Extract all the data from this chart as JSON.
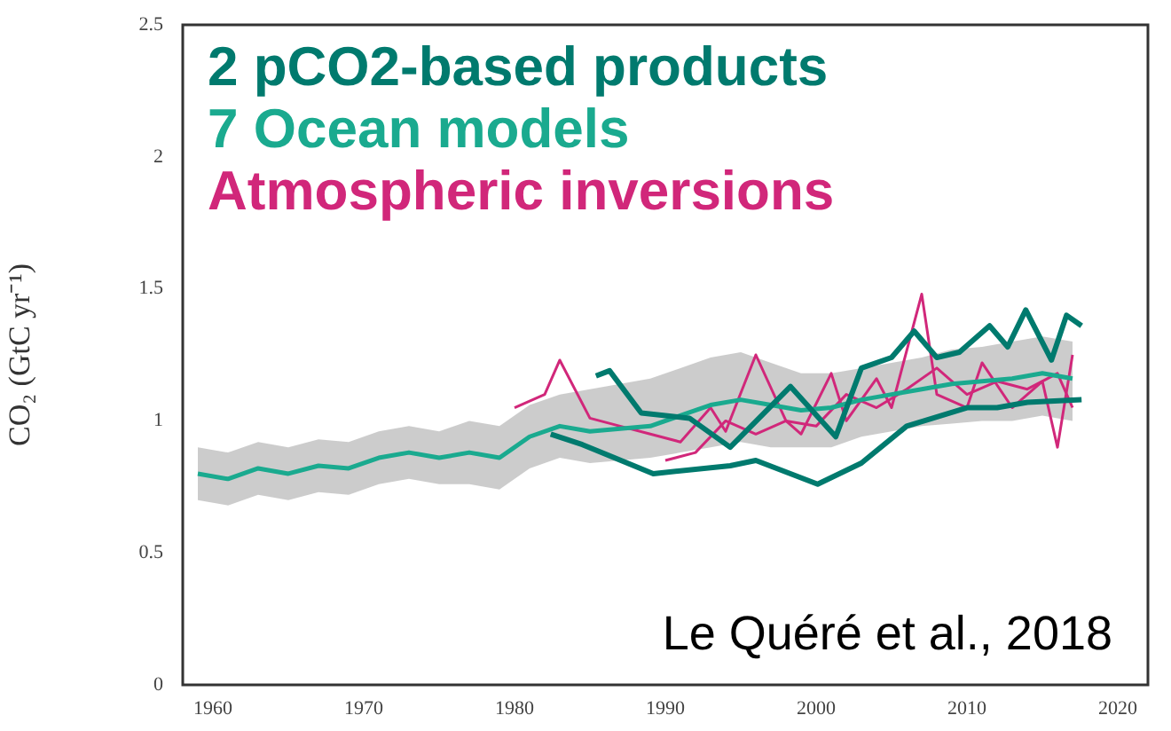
{
  "chart_data": {
    "type": "line",
    "ylabel": "CO₂ (GtC yr⁻¹)",
    "annotations": [
      "Le Quéré et al., 2018"
    ],
    "xlim": [
      1958,
      2022
    ],
    "xticks": [
      1960,
      1970,
      1980,
      1990,
      2000,
      2010,
      2020
    ],
    "ylim": [
      0,
      2.5
    ],
    "yticks": [
      0,
      0.5,
      1,
      1.5,
      2,
      2.5
    ],
    "grid": false,
    "legend": "top left",
    "marker": "none",
    "line_style": "solid",
    "series": [
      {
        "name": "2 pCO2-based products",
        "color": "#007a6e",
        "x": [
          1985.4,
          1986.3,
          1988.4,
          1991.6,
          1994.3,
          1998.3,
          2001.3,
          2003,
          2005,
          2006.5,
          2008,
          2009.5,
          2011.5,
          2012.7,
          2013.9,
          2015.6,
          2016.6,
          2017.6
        ],
        "values": [
          1.17,
          1.19,
          1.03,
          1.01,
          0.9,
          1.13,
          0.94,
          1.2,
          1.24,
          1.34,
          1.24,
          1.26,
          1.36,
          1.28,
          1.42,
          1.23,
          1.4,
          1.36
        ]
      },
      {
        "color": "#007a6e",
        "x": [
          1982.4,
          1984.5,
          1989.2,
          1994.3,
          1996,
          2000.1,
          2003,
          2006,
          2010,
          2012,
          2014,
          2017.6
        ],
        "values": [
          0.95,
          0.91,
          0.8,
          0.83,
          0.85,
          0.76,
          0.84,
          0.98,
          1.05,
          1.05,
          1.07,
          1.08
        ]
      },
      {
        "name": "7 Ocean models",
        "color": "#1aaa8f",
        "x": [
          1959,
          1961,
          1963,
          1965,
          1967,
          1969,
          1971,
          1973,
          1975,
          1977,
          1979,
          1981,
          1983,
          1985,
          1987,
          1989,
          1991,
          1993,
          1995,
          1997,
          1999,
          2001,
          2003,
          2005,
          2007,
          2009,
          2011,
          2013,
          2015,
          2017
        ],
        "values": [
          0.8,
          0.78,
          0.82,
          0.8,
          0.83,
          0.82,
          0.86,
          0.88,
          0.86,
          0.88,
          0.86,
          0.94,
          0.98,
          0.96,
          0.97,
          0.98,
          1.02,
          1.06,
          1.08,
          1.06,
          1.04,
          1.05,
          1.08,
          1.1,
          1.12,
          1.14,
          1.15,
          1.16,
          1.18,
          1.16
        ],
        "lower": [
          0.7,
          0.68,
          0.72,
          0.7,
          0.73,
          0.72,
          0.76,
          0.78,
          0.76,
          0.76,
          0.74,
          0.82,
          0.86,
          0.84,
          0.85,
          0.86,
          0.88,
          0.9,
          0.92,
          0.9,
          0.9,
          0.9,
          0.94,
          0.96,
          0.98,
          0.99,
          1.0,
          1.0,
          1.02,
          1.0
        ],
        "upper": [
          0.9,
          0.88,
          0.92,
          0.9,
          0.93,
          0.92,
          0.96,
          0.98,
          0.96,
          1.0,
          0.98,
          1.06,
          1.1,
          1.12,
          1.14,
          1.16,
          1.2,
          1.24,
          1.26,
          1.22,
          1.18,
          1.18,
          1.2,
          1.22,
          1.24,
          1.27,
          1.28,
          1.3,
          1.32,
          1.3
        ]
      },
      {
        "name": "Atmospheric inversions",
        "color": "#d1277a",
        "x": [
          1980,
          1982,
          1983,
          1985,
          1987,
          1989,
          1991,
          1993,
          1994,
          1996,
          1998,
          1999,
          2001,
          2002,
          2004,
          2005,
          2007,
          2008,
          2010,
          2011,
          2013,
          2015,
          2016,
          2017
        ],
        "values": [
          1.05,
          1.1,
          1.23,
          1.01,
          0.98,
          0.95,
          0.92,
          1.05,
          0.96,
          1.25,
          1.0,
          0.95,
          1.18,
          1.0,
          1.16,
          1.05,
          1.48,
          1.1,
          1.05,
          1.22,
          1.05,
          1.15,
          0.9,
          1.25
        ]
      },
      {
        "color": "#d1277a",
        "x": [
          1990,
          1992,
          1994,
          1996,
          1998,
          2000,
          2002,
          2004,
          2006,
          2008,
          2010,
          2012,
          2014,
          2016,
          2017
        ],
        "values": [
          0.85,
          0.88,
          1.0,
          0.95,
          1.0,
          0.98,
          1.1,
          1.05,
          1.12,
          1.2,
          1.1,
          1.15,
          1.12,
          1.18,
          1.05
        ]
      }
    ]
  }
}
